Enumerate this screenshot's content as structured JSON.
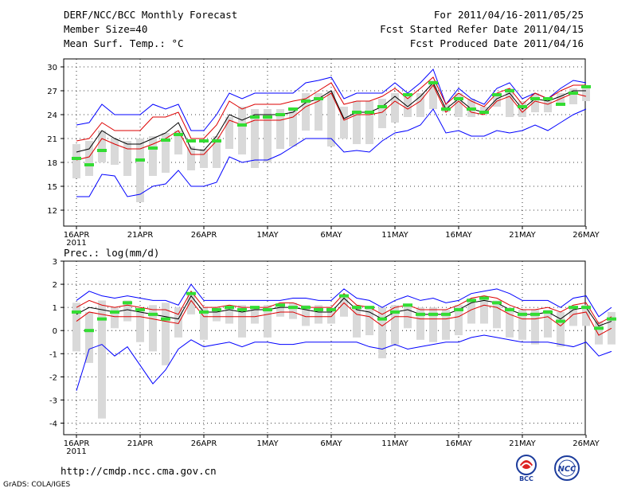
{
  "header": {
    "title": "DERF/NCC/BCC Monthly Forecast",
    "member_size": "Member Size=40",
    "variable1": "Mean Surf. Temp.: °C",
    "period": "For 2011/04/16-2011/05/25",
    "started": "Fcst Started Refer Date 2011/04/15",
    "produced": "Fcst Produced Date 2011/04/16"
  },
  "footer": {
    "url": "http://cmdp.ncc.cma.gov.cn",
    "grads": "GrADS: COLA/IGES",
    "logo_bcc": "BCC",
    "logo_ncc": "NCC"
  },
  "colors": {
    "max": "#0000ff",
    "upper": "#dd0000",
    "mean": "#000000",
    "lower": "#dd0000",
    "min": "#0000ff",
    "bar": "#d9d9d9",
    "clim": "#33dd33"
  },
  "chart_data": [
    {
      "type": "box-line",
      "title": "Mean Surf. Temp.: °C",
      "ylim": [
        10,
        31
      ],
      "yticks": [
        12,
        15,
        18,
        21,
        24,
        27,
        30
      ],
      "xtick_labels": [
        "16APR",
        "21APR",
        "26APR",
        "1MAY",
        "6MAY",
        "11MAY",
        "16MAY",
        "21MAY",
        "26MAY"
      ],
      "year_label": "2011",
      "series": [
        {
          "name": "max",
          "values": [
            22.7,
            23.0,
            25.3,
            24.0,
            24.0,
            24.0,
            25.3,
            24.7,
            25.3,
            22.0,
            22.0,
            24.0,
            26.7,
            26.0,
            26.7,
            26.7,
            26.7,
            26.7,
            28.0,
            28.3,
            28.7,
            26.0,
            26.7,
            26.7,
            26.7,
            28.0,
            26.7,
            28.0,
            29.7,
            25.3,
            27.3,
            26.0,
            25.3,
            27.3,
            28.0,
            26.0,
            26.7,
            26.0,
            27.3,
            28.3,
            28.0
          ]
        },
        {
          "name": "upper",
          "values": [
            20.7,
            21.0,
            23.0,
            22.0,
            22.0,
            22.0,
            23.7,
            23.7,
            24.3,
            21.0,
            21.0,
            22.7,
            25.7,
            24.7,
            25.3,
            25.3,
            25.3,
            25.7,
            26.0,
            27.0,
            28.0,
            25.3,
            25.7,
            25.7,
            26.3,
            27.3,
            26.0,
            27.3,
            28.7,
            25.3,
            26.7,
            25.7,
            25.0,
            26.7,
            27.3,
            25.3,
            26.7,
            26.0,
            27.0,
            27.7,
            27.7
          ]
        },
        {
          "name": "mean",
          "values": [
            19.3,
            19.7,
            22.0,
            21.0,
            20.3,
            20.3,
            21.0,
            21.7,
            23.0,
            19.7,
            19.5,
            21.3,
            24.0,
            23.3,
            24.0,
            24.0,
            24.0,
            24.3,
            25.5,
            26.0,
            27.0,
            23.5,
            24.3,
            24.3,
            25.0,
            26.3,
            25.0,
            26.3,
            28.0,
            24.7,
            26.0,
            24.7,
            24.3,
            26.0,
            26.7,
            24.7,
            26.0,
            25.7,
            26.3,
            27.0,
            27.0
          ]
        },
        {
          "name": "lower",
          "values": [
            18.3,
            18.7,
            21.0,
            20.3,
            19.7,
            19.7,
            20.3,
            21.0,
            22.0,
            19.0,
            19.0,
            20.7,
            23.3,
            22.7,
            23.3,
            23.3,
            23.3,
            23.7,
            25.0,
            25.7,
            26.7,
            23.3,
            24.0,
            24.0,
            24.3,
            25.7,
            24.7,
            25.7,
            27.7,
            24.3,
            25.7,
            24.3,
            24.0,
            25.7,
            26.3,
            24.3,
            25.7,
            25.3,
            26.0,
            26.7,
            26.3
          ]
        },
        {
          "name": "min",
          "values": [
            13.7,
            13.7,
            16.5,
            16.3,
            13.7,
            14.0,
            15.0,
            15.3,
            17.0,
            15.0,
            15.0,
            15.5,
            18.7,
            18.0,
            18.3,
            18.3,
            19.0,
            20.0,
            21.0,
            21.0,
            21.0,
            19.3,
            19.5,
            19.3,
            20.7,
            21.7,
            22.0,
            22.7,
            24.7,
            21.7,
            22.0,
            21.3,
            21.3,
            22.0,
            21.7,
            22.0,
            22.7,
            22.0,
            23.0,
            24.0,
            24.7
          ]
        },
        {
          "name": "bar_top",
          "values": [
            20.3,
            20.7,
            22.0,
            21.0,
            20.7,
            21.0,
            21.3,
            21.7,
            22.0,
            20.0,
            19.7,
            21.3,
            23.7,
            25.0,
            24.7,
            24.7,
            24.7,
            24.7,
            26.7,
            26.7,
            27.0,
            25.0,
            25.7,
            25.7,
            26.0,
            26.7,
            26.3,
            26.7,
            28.3,
            25.3,
            26.7,
            26.0,
            25.0,
            26.7,
            27.3,
            25.7,
            26.7,
            26.0,
            26.7,
            27.3,
            27.3
          ]
        },
        {
          "name": "bar_bottom",
          "values": [
            16.0,
            16.3,
            18.0,
            17.7,
            16.3,
            13.0,
            16.3,
            16.7,
            19.0,
            17.0,
            17.3,
            17.3,
            19.7,
            19.0,
            17.3,
            18.0,
            19.7,
            20.0,
            22.0,
            22.0,
            20.0,
            21.0,
            20.3,
            20.3,
            22.3,
            23.0,
            23.7,
            23.7,
            24.7,
            24.3,
            23.7,
            23.7,
            24.0,
            25.0,
            23.7,
            23.7,
            24.3,
            24.3,
            25.3,
            25.3,
            25.7
          ]
        },
        {
          "name": "clim",
          "values": [
            18.5,
            17.7,
            19.5,
            null,
            null,
            18.3,
            19.8,
            20.8,
            21.5,
            20.7,
            20.7,
            20.7,
            null,
            22.7,
            23.7,
            23.7,
            24.0,
            24.7,
            25.7,
            26.0,
            null,
            null,
            24.3,
            24.3,
            25.0,
            null,
            26.5,
            null,
            28.0,
            24.7,
            26.0,
            24.7,
            24.3,
            26.5,
            27.0,
            25.0,
            26.0,
            26.0,
            25.3,
            26.7,
            27.5
          ]
        }
      ]
    },
    {
      "type": "box-line",
      "title": "Prec.: log(mm/d)",
      "ylim": [
        -4.5,
        3
      ],
      "yticks": [
        -4,
        -3,
        -2,
        -1,
        0,
        1,
        2,
        3
      ],
      "xtick_labels": [
        "16APR",
        "21APR",
        "26APR",
        "1MAY",
        "6MAY",
        "11MAY",
        "16MAY",
        "21MAY",
        "26MAY"
      ],
      "year_label": "2011",
      "series": [
        {
          "name": "max",
          "values": [
            1.3,
            1.7,
            1.5,
            1.4,
            1.5,
            1.4,
            1.3,
            1.3,
            1.1,
            2.0,
            1.3,
            1.3,
            1.3,
            1.3,
            1.3,
            1.3,
            1.3,
            1.4,
            1.4,
            1.3,
            1.3,
            1.8,
            1.4,
            1.3,
            1.0,
            1.3,
            1.5,
            1.3,
            1.4,
            1.2,
            1.3,
            1.6,
            1.7,
            1.8,
            1.6,
            1.3,
            1.3,
            1.3,
            1.0,
            1.4,
            1.5,
            0.6,
            1.0
          ]
        },
        {
          "name": "upper",
          "values": [
            1.0,
            1.3,
            1.1,
            1.0,
            1.1,
            1.0,
            0.9,
            0.9,
            0.7,
            1.7,
            1.0,
            1.0,
            1.1,
            1.0,
            1.0,
            1.0,
            1.2,
            1.2,
            1.0,
            1.0,
            1.0,
            1.6,
            1.1,
            1.0,
            0.7,
            1.0,
            1.1,
            0.9,
            0.9,
            0.9,
            1.1,
            1.4,
            1.5,
            1.4,
            1.1,
            0.9,
            0.9,
            1.0,
            0.8,
            1.1,
            1.2,
            0.3,
            0.6
          ]
        },
        {
          "name": "mean",
          "values": [
            0.7,
            1.0,
            0.9,
            0.8,
            0.9,
            0.8,
            0.7,
            0.6,
            0.5,
            1.5,
            0.8,
            0.8,
            0.9,
            0.8,
            0.9,
            0.9,
            1.0,
            1.0,
            0.9,
            0.8,
            0.8,
            1.4,
            0.9,
            0.8,
            0.5,
            0.8,
            0.9,
            0.7,
            0.7,
            0.7,
            0.9,
            1.2,
            1.3,
            1.2,
            0.9,
            0.7,
            0.7,
            0.8,
            0.5,
            0.9,
            1.0,
            0.2,
            0.4
          ]
        },
        {
          "name": "lower",
          "values": [
            0.4,
            0.8,
            0.7,
            0.6,
            0.6,
            0.6,
            0.5,
            0.4,
            0.3,
            1.3,
            0.6,
            0.6,
            0.6,
            0.6,
            0.6,
            0.7,
            0.8,
            0.8,
            0.6,
            0.6,
            0.6,
            1.2,
            0.7,
            0.6,
            0.2,
            0.6,
            0.6,
            0.5,
            0.5,
            0.5,
            0.6,
            0.9,
            1.1,
            1.0,
            0.7,
            0.5,
            0.5,
            0.6,
            0.2,
            0.7,
            0.8,
            -0.2,
            0.1
          ]
        },
        {
          "name": "min",
          "values": [
            -2.6,
            -0.8,
            -0.6,
            -1.1,
            -0.7,
            -1.5,
            -2.3,
            -1.7,
            -0.8,
            -0.4,
            -0.7,
            -0.6,
            -0.5,
            -0.7,
            -0.5,
            -0.5,
            -0.6,
            -0.6,
            -0.5,
            -0.5,
            -0.5,
            -0.5,
            -0.5,
            -0.7,
            -0.8,
            -0.6,
            -0.8,
            -0.7,
            -0.6,
            -0.5,
            -0.5,
            -0.3,
            -0.2,
            -0.3,
            -0.4,
            -0.5,
            -0.5,
            -0.5,
            -0.6,
            -0.7,
            -0.5,
            -1.1,
            -0.9
          ]
        },
        {
          "name": "bar_top",
          "values": [
            1.2,
            0.8,
            1.3,
            1.0,
            1.3,
            0.9,
            1.1,
            1.2,
            1.0,
            1.6,
            1.0,
            1.0,
            1.0,
            1.1,
            1.0,
            1.1,
            1.1,
            1.2,
            1.1,
            1.1,
            1.0,
            1.5,
            1.1,
            1.0,
            1.0,
            1.1,
            1.1,
            1.0,
            1.0,
            0.9,
            1.1,
            1.4,
            1.4,
            1.3,
            1.0,
            0.9,
            0.9,
            0.9,
            0.8,
            1.0,
            1.1,
            0.4,
            0.8
          ]
        },
        {
          "name": "bar_bottom",
          "values": [
            -0.9,
            -1.4,
            -3.8,
            0.1,
            0.4,
            -0.5,
            -0.9,
            -1.5,
            -0.3,
            0.7,
            -0.4,
            0.4,
            0.3,
            -0.3,
            0.3,
            -0.3,
            0.6,
            0.5,
            0.2,
            0.3,
            0.3,
            0.6,
            -0.3,
            -0.2,
            -1.2,
            -0.6,
            0.1,
            -0.4,
            -0.5,
            -0.4,
            -0.2,
            0.3,
            0.3,
            0.1,
            -0.3,
            -0.4,
            -0.6,
            -0.3,
            -0.7,
            0.2,
            0.2,
            -0.6,
            -0.6
          ]
        },
        {
          "name": "clim",
          "values": [
            0.8,
            0.0,
            0.5,
            0.8,
            1.2,
            0.9,
            0.7,
            0.5,
            null,
            1.6,
            0.8,
            0.9,
            1.0,
            0.9,
            1.0,
            0.9,
            1.1,
            1.0,
            1.0,
            0.9,
            0.9,
            1.5,
            1.0,
            1.0,
            0.5,
            0.8,
            1.1,
            0.7,
            0.7,
            0.7,
            0.9,
            1.3,
            1.4,
            1.2,
            0.9,
            0.7,
            0.7,
            0.8,
            0.4,
            1.0,
            1.0,
            0.1,
            0.5
          ]
        }
      ]
    }
  ]
}
